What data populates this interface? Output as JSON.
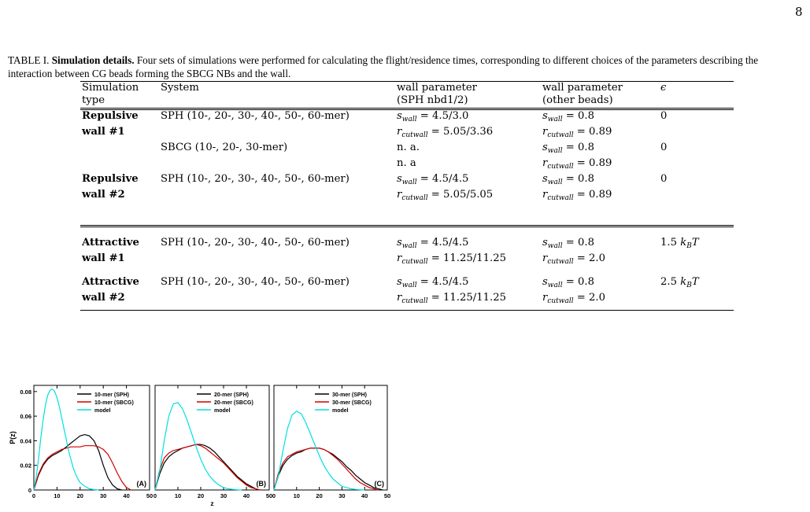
{
  "page_number": "8",
  "caption": {
    "prefix": "TABLE I.",
    "bold": "Simulation details.",
    "text": "Four sets of simulations were performed for calculating the flight/residence times, corresponding to different choices of the parameters describing the interaction between CG beads forming the SBCG NBs and the wall."
  },
  "table": {
    "headers": {
      "c1a": "Simulation",
      "c1b": "type",
      "c2": "System",
      "c3a": "wall parameter",
      "c3b": "(SPH nbd1/2)",
      "c4a": "wall parameter",
      "c4b": "(other beads)",
      "c5": "ϵ"
    },
    "rows": [
      {
        "type_a": "Repulsive",
        "type_b": "wall #1",
        "system": "SPH (10-, 20-, 30-, 40-, 50-, 60-mer)",
        "s_label": "s",
        "s_sub": "wall",
        "s_val": " = 4.5/3.0",
        "r_label": "r",
        "r_sub": "cutwall",
        "r_val": " = 5.05/3.36",
        "o_s_val": " = 0.8",
        "o_r_val": " = 0.89",
        "eps": "0"
      },
      {
        "type_a": "",
        "type_b": "",
        "system": "SBCG (10-, 20-, 30-mer)",
        "na1": "n. a.",
        "na2": "n. a",
        "o_s_val": " = 0.8",
        "o_r_val": " = 0.89",
        "eps": "0"
      },
      {
        "type_a": "Repulsive",
        "type_b": "wall #2",
        "system": "SPH (10-, 20-, 30-, 40-, 50-, 60-mer)",
        "s_val": " = 4.5/4.5",
        "r_val": " = 5.05/5.05",
        "o_s_val": " = 0.8",
        "o_r_val": " = 0.89",
        "eps": "0"
      },
      {
        "type_a": "Attractive",
        "type_b": "wall #1",
        "system": "SPH (10-, 20-, 30-, 40-, 50-, 60-mer)",
        "s_val": " = 4.5/4.5",
        "r_val": " = 11.25/11.25",
        "o_s_val": " = 0.8",
        "o_r_val": " = 2.0",
        "eps": "1.5",
        "eps_unit": "k",
        "eps_sub": "B",
        "eps_T": "T"
      },
      {
        "type_a": "Attractive",
        "type_b": "wall #2",
        "system": "SPH (10-, 20-, 30-, 40-, 50-, 60-mer)",
        "s_val": " = 4.5/4.5",
        "r_val": " = 11.25/11.25",
        "o_s_val": " = 0.8",
        "o_r_val": " = 2.0",
        "eps": "2.5",
        "eps_unit": "k",
        "eps_sub": "B",
        "eps_T": "T"
      }
    ]
  },
  "chart_data": [
    {
      "type": "line",
      "panel_label": "(A)",
      "xlabel": "",
      "ylabel": "P(z)",
      "xlim": [
        0,
        50
      ],
      "ylim": [
        0,
        0.085
      ],
      "xticks": [
        0,
        10,
        20,
        30,
        40,
        50
      ],
      "yticks": [
        0,
        0.02,
        0.04,
        0.06,
        0.08
      ],
      "ytick_labels": [
        "0",
        "0.02",
        "0.04",
        "0.06",
        "0.08"
      ],
      "legend": "top-right",
      "series": [
        {
          "name": "10-mer (SPH)",
          "color": "#000000",
          "x": [
            0,
            2,
            4,
            6,
            8,
            10,
            12,
            14,
            16,
            18,
            20,
            22,
            24,
            26,
            28,
            30,
            32,
            34,
            36,
            38
          ],
          "y": [
            0,
            0.012,
            0.02,
            0.025,
            0.028,
            0.03,
            0.032,
            0.035,
            0.038,
            0.041,
            0.044,
            0.045,
            0.044,
            0.04,
            0.032,
            0.02,
            0.01,
            0.004,
            0.001,
            0
          ]
        },
        {
          "name": "10-mer (SBCG)",
          "color": "#d00000",
          "x": [
            0,
            2,
            4,
            6,
            8,
            10,
            12,
            14,
            16,
            18,
            20,
            22,
            24,
            26,
            28,
            30,
            32,
            34,
            36,
            38,
            40,
            42
          ],
          "y": [
            0,
            0.013,
            0.021,
            0.026,
            0.029,
            0.031,
            0.033,
            0.034,
            0.035,
            0.035,
            0.035,
            0.036,
            0.036,
            0.036,
            0.035,
            0.033,
            0.029,
            0.022,
            0.014,
            0.007,
            0.002,
            0
          ]
        },
        {
          "name": "model",
          "color": "#00e0e0",
          "x": [
            0,
            1,
            2,
            3,
            4,
            5,
            6,
            7,
            8,
            9,
            10,
            11,
            12,
            13,
            14,
            15,
            16,
            17,
            18,
            19,
            20,
            22,
            24,
            26,
            28
          ],
          "y": [
            0,
            0.01,
            0.025,
            0.042,
            0.057,
            0.069,
            0.077,
            0.081,
            0.082,
            0.08,
            0.075,
            0.068,
            0.059,
            0.05,
            0.041,
            0.032,
            0.025,
            0.018,
            0.013,
            0.009,
            0.006,
            0.003,
            0.001,
            0.0003,
            0
          ]
        }
      ]
    },
    {
      "type": "line",
      "panel_label": "(B)",
      "xlabel": "z",
      "ylabel": "",
      "xlim": [
        0,
        50
      ],
      "ylim": [
        0,
        0.085
      ],
      "xticks": [
        0,
        10,
        20,
        30,
        40,
        50
      ],
      "legend": "top-right",
      "series": [
        {
          "name": "20-mer (SPH)",
          "color": "#000000",
          "x": [
            0,
            2,
            4,
            6,
            8,
            10,
            12,
            14,
            16,
            18,
            20,
            22,
            24,
            26,
            28,
            30,
            32,
            34,
            36,
            38,
            40,
            42,
            44,
            46
          ],
          "y": [
            0,
            0.013,
            0.022,
            0.027,
            0.03,
            0.032,
            0.034,
            0.035,
            0.036,
            0.037,
            0.037,
            0.036,
            0.034,
            0.031,
            0.027,
            0.023,
            0.019,
            0.015,
            0.011,
            0.008,
            0.005,
            0.003,
            0.001,
            0
          ]
        },
        {
          "name": "20-mer (SBCG)",
          "color": "#d00000",
          "x": [
            0,
            2,
            4,
            6,
            8,
            10,
            12,
            14,
            16,
            18,
            20,
            22,
            24,
            26,
            28,
            30,
            32,
            34,
            36,
            38,
            40,
            42,
            44,
            46
          ],
          "y": [
            0,
            0.016,
            0.026,
            0.03,
            0.032,
            0.033,
            0.034,
            0.035,
            0.036,
            0.037,
            0.036,
            0.034,
            0.031,
            0.028,
            0.025,
            0.022,
            0.018,
            0.014,
            0.01,
            0.007,
            0.004,
            0.002,
            0.001,
            0
          ]
        },
        {
          "name": "model",
          "color": "#00e0e0",
          "x": [
            0,
            2,
            4,
            6,
            8,
            10,
            12,
            14,
            16,
            18,
            20,
            22,
            24,
            26,
            28,
            30,
            32,
            34,
            36,
            38
          ],
          "y": [
            0,
            0.015,
            0.04,
            0.06,
            0.07,
            0.071,
            0.066,
            0.057,
            0.046,
            0.035,
            0.025,
            0.017,
            0.011,
            0.007,
            0.004,
            0.002,
            0.001,
            0.0005,
            0.0002,
            0
          ]
        }
      ]
    },
    {
      "type": "line",
      "panel_label": "(C)",
      "xlabel": "",
      "ylabel": "",
      "xlim": [
        0,
        50
      ],
      "ylim": [
        0,
        0.085
      ],
      "xticks": [
        0,
        10,
        20,
        30,
        40,
        50
      ],
      "legend": "top-right",
      "series": [
        {
          "name": "30-mer (SPH)",
          "color": "#000000",
          "x": [
            0,
            2,
            4,
            6,
            8,
            10,
            12,
            14,
            16,
            18,
            20,
            22,
            24,
            26,
            28,
            30,
            32,
            34,
            36,
            38,
            40,
            42,
            44,
            46,
            48
          ],
          "y": [
            0,
            0.012,
            0.02,
            0.025,
            0.028,
            0.03,
            0.031,
            0.033,
            0.034,
            0.034,
            0.034,
            0.033,
            0.031,
            0.029,
            0.026,
            0.023,
            0.019,
            0.016,
            0.012,
            0.009,
            0.006,
            0.004,
            0.002,
            0.001,
            0
          ]
        },
        {
          "name": "30-mer (SBCG)",
          "color": "#d00000",
          "x": [
            0,
            2,
            4,
            6,
            8,
            10,
            12,
            14,
            16,
            18,
            20,
            22,
            24,
            26,
            28,
            30,
            32,
            34,
            36,
            38,
            40,
            42,
            44,
            46
          ],
          "y": [
            0,
            0.014,
            0.022,
            0.027,
            0.029,
            0.031,
            0.032,
            0.033,
            0.034,
            0.034,
            0.034,
            0.033,
            0.031,
            0.028,
            0.025,
            0.021,
            0.017,
            0.013,
            0.009,
            0.006,
            0.004,
            0.002,
            0.001,
            0
          ]
        },
        {
          "name": "model",
          "color": "#00e0e0",
          "x": [
            0,
            2,
            4,
            6,
            8,
            10,
            12,
            14,
            16,
            18,
            20,
            22,
            24,
            26,
            28,
            30,
            32,
            34,
            36,
            38,
            40
          ],
          "y": [
            0,
            0.012,
            0.032,
            0.05,
            0.061,
            0.064,
            0.062,
            0.055,
            0.046,
            0.037,
            0.028,
            0.02,
            0.014,
            0.009,
            0.006,
            0.003,
            0.002,
            0.001,
            0.0005,
            0.0002,
            0
          ]
        }
      ]
    }
  ]
}
